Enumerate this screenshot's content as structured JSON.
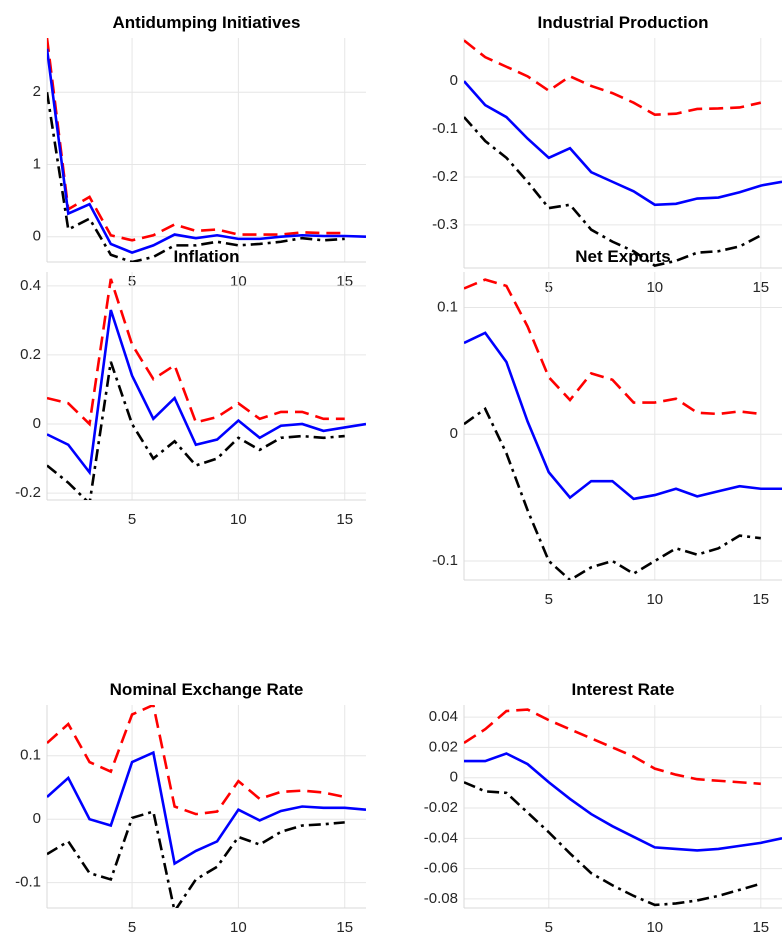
{
  "chart_data": [
    {
      "type": "line",
      "title": "Antidumping Initiatives",
      "x": [
        1,
        2,
        3,
        4,
        5,
        6,
        7,
        8,
        9,
        10,
        11,
        12,
        13,
        14,
        15,
        16
      ],
      "xlim": [
        1,
        16
      ],
      "xticks": [
        5,
        10,
        15
      ],
      "ylim": [
        -0.35,
        2.75
      ],
      "yticks": [
        0,
        1,
        2
      ],
      "grid": true,
      "series": [
        {
          "color": "#ff0000",
          "dash": "dashed",
          "values": [
            2.75,
            0.38,
            0.55,
            0.02,
            -0.05,
            0.02,
            0.17,
            0.08,
            0.1,
            0.03,
            0.03,
            0.03,
            0.06,
            0.05,
            0.05,
            null
          ]
        },
        {
          "color": "#000000",
          "dash": "dashdot",
          "values": [
            2.0,
            0.1,
            0.25,
            -0.25,
            -0.35,
            -0.28,
            -0.12,
            -0.12,
            -0.07,
            -0.12,
            -0.1,
            -0.07,
            -0.02,
            -0.05,
            -0.03,
            null
          ]
        },
        {
          "color": "#0000ff",
          "dash": "solid",
          "values": [
            2.6,
            0.32,
            0.45,
            -0.1,
            -0.22,
            -0.12,
            0.03,
            -0.02,
            0.02,
            -0.03,
            -0.03,
            0,
            0.02,
            0.01,
            0.01,
            0
          ]
        }
      ]
    },
    {
      "type": "line",
      "title": "Industrial Production",
      "x": [
        1,
        2,
        3,
        4,
        5,
        6,
        7,
        8,
        9,
        10,
        11,
        12,
        13,
        14,
        15,
        16
      ],
      "xlim": [
        1,
        16
      ],
      "xticks": [
        5,
        10,
        15
      ],
      "ylim": [
        -0.39,
        0.09
      ],
      "yticks": [
        -0.3,
        -0.2,
        -0.1,
        0
      ],
      "grid": true,
      "series": [
        {
          "color": "#ff0000",
          "dash": "dashed",
          "values": [
            0.085,
            0.05,
            0.03,
            0.01,
            -0.02,
            0.01,
            -0.01,
            -0.025,
            -0.045,
            -0.07,
            -0.068,
            -0.058,
            -0.057,
            -0.055,
            -0.045,
            null
          ]
        },
        {
          "color": "#000000",
          "dash": "dashdot",
          "values": [
            -0.075,
            -0.125,
            -0.16,
            -0.21,
            -0.265,
            -0.258,
            -0.31,
            -0.335,
            -0.355,
            -0.385,
            -0.375,
            -0.358,
            -0.355,
            -0.345,
            -0.322,
            null
          ]
        },
        {
          "color": "#0000ff",
          "dash": "solid",
          "values": [
            0.0,
            -0.05,
            -0.075,
            -0.12,
            -0.16,
            -0.14,
            -0.19,
            -0.21,
            -0.23,
            -0.258,
            -0.256,
            -0.245,
            -0.243,
            -0.232,
            -0.218,
            -0.21
          ]
        }
      ]
    },
    {
      "type": "line",
      "title": "Inflation",
      "x": [
        1,
        2,
        3,
        4,
        5,
        6,
        7,
        8,
        9,
        10,
        11,
        12,
        13,
        14,
        15,
        16
      ],
      "xlim": [
        1,
        16
      ],
      "xticks": [
        5,
        10,
        15
      ],
      "ylim": [
        -0.22,
        0.44
      ],
      "yticks": [
        -0.2,
        0,
        0.2,
        0.4
      ],
      "grid": true,
      "series": [
        {
          "color": "#ff0000",
          "dash": "dashed",
          "values": [
            0.075,
            0.06,
            0.0,
            0.42,
            0.23,
            0.13,
            0.17,
            0.005,
            0.02,
            0.06,
            0.015,
            0.035,
            0.035,
            0.015,
            0.015,
            null
          ]
        },
        {
          "color": "#000000",
          "dash": "dashdot",
          "values": [
            -0.12,
            -0.17,
            -0.23,
            0.18,
            0.0,
            -0.1,
            -0.05,
            -0.12,
            -0.1,
            -0.04,
            -0.075,
            -0.04,
            -0.035,
            -0.04,
            -0.035,
            null
          ]
        },
        {
          "color": "#0000ff",
          "dash": "solid",
          "values": [
            -0.03,
            -0.06,
            -0.14,
            0.33,
            0.14,
            0.015,
            0.075,
            -0.06,
            -0.045,
            0.01,
            -0.04,
            -0.005,
            0,
            -0.02,
            -0.01,
            0
          ]
        }
      ]
    },
    {
      "type": "line",
      "title": "Net Exports",
      "x": [
        1,
        2,
        3,
        4,
        5,
        6,
        7,
        8,
        9,
        10,
        11,
        12,
        13,
        14,
        15,
        16
      ],
      "xlim": [
        1,
        16
      ],
      "xticks": [
        5,
        10,
        15
      ],
      "ylim": [
        -0.115,
        0.128
      ],
      "yticks": [
        -0.1,
        0,
        0.1
      ],
      "grid": true,
      "series": [
        {
          "color": "#ff0000",
          "dash": "dashed",
          "values": [
            0.115,
            0.122,
            0.117,
            0.085,
            0.045,
            0.027,
            0.048,
            0.043,
            0.025,
            0.025,
            0.028,
            0.017,
            0.016,
            0.018,
            0.016,
            null
          ]
        },
        {
          "color": "#000000",
          "dash": "dashdot",
          "values": [
            0.008,
            0.02,
            -0.015,
            -0.06,
            -0.1,
            -0.115,
            -0.105,
            -0.1,
            -0.11,
            -0.1,
            -0.09,
            -0.095,
            -0.09,
            -0.08,
            -0.082,
            null
          ]
        },
        {
          "color": "#0000ff",
          "dash": "solid",
          "values": [
            0.072,
            0.08,
            0.057,
            0.01,
            -0.03,
            -0.05,
            -0.037,
            -0.037,
            -0.051,
            -0.048,
            -0.043,
            -0.049,
            -0.045,
            -0.041,
            -0.043,
            -0.043
          ]
        }
      ]
    },
    {
      "type": "line",
      "title": "Nominal Exchange Rate",
      "x": [
        1,
        2,
        3,
        4,
        5,
        6,
        7,
        8,
        9,
        10,
        11,
        12,
        13,
        14,
        15,
        16
      ],
      "xlim": [
        1,
        16
      ],
      "xticks": [
        5,
        10,
        15
      ],
      "ylim": [
        -0.14,
        0.18
      ],
      "yticks": [
        -0.1,
        0,
        0.1
      ],
      "grid": true,
      "series": [
        {
          "color": "#ff0000",
          "dash": "dashed",
          "values": [
            0.12,
            0.15,
            0.09,
            0.075,
            0.165,
            0.18,
            0.02,
            0.008,
            0.012,
            0.06,
            0.032,
            0.043,
            0.045,
            0.042,
            0.035,
            null
          ]
        },
        {
          "color": "#000000",
          "dash": "dashdot",
          "values": [
            -0.055,
            -0.035,
            -0.085,
            -0.095,
            0.002,
            0.012,
            -0.145,
            -0.095,
            -0.075,
            -0.028,
            -0.04,
            -0.02,
            -0.01,
            -0.008,
            -0.005,
            null
          ]
        },
        {
          "color": "#0000ff",
          "dash": "solid",
          "values": [
            0.035,
            0.065,
            0.0,
            -0.01,
            0.09,
            0.105,
            -0.07,
            -0.05,
            -0.035,
            0.015,
            -0.002,
            0.013,
            0.02,
            0.018,
            0.018,
            0.015
          ]
        }
      ]
    },
    {
      "type": "line",
      "title": "Interest Rate",
      "x": [
        1,
        2,
        3,
        4,
        5,
        6,
        7,
        8,
        9,
        10,
        11,
        12,
        13,
        14,
        15,
        16
      ],
      "xlim": [
        1,
        16
      ],
      "xticks": [
        5,
        10,
        15
      ],
      "ylim": [
        -0.086,
        0.048
      ],
      "yticks": [
        -0.08,
        -0.06,
        -0.04,
        -0.02,
        0,
        0.02,
        0.04
      ],
      "grid": true,
      "series": [
        {
          "color": "#ff0000",
          "dash": "dashed",
          "values": [
            0.023,
            0.032,
            0.044,
            0.045,
            0.038,
            0.032,
            0.026,
            0.02,
            0.014,
            0.006,
            0.002,
            -0.001,
            -0.002,
            -0.003,
            -0.004,
            null
          ]
        },
        {
          "color": "#000000",
          "dash": "dashdot",
          "values": [
            -0.003,
            -0.009,
            -0.01,
            -0.023,
            -0.036,
            -0.05,
            -0.063,
            -0.071,
            -0.078,
            -0.084,
            -0.083,
            -0.081,
            -0.078,
            -0.074,
            -0.07,
            null
          ]
        },
        {
          "color": "#0000ff",
          "dash": "solid",
          "values": [
            0.011,
            0.011,
            0.016,
            0.009,
            -0.003,
            -0.014,
            -0.024,
            -0.032,
            -0.039,
            -0.046,
            -0.047,
            -0.048,
            -0.047,
            -0.045,
            -0.043,
            -0.04
          ]
        }
      ]
    }
  ]
}
